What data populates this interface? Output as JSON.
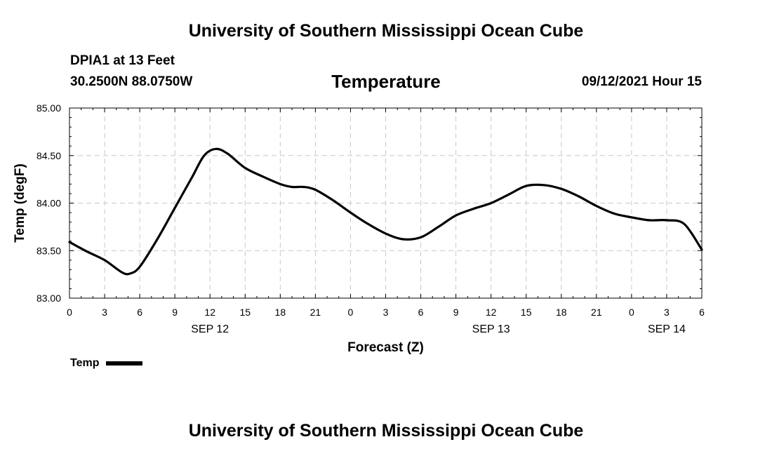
{
  "header": {
    "title": "University of Southern Mississippi Ocean Cube",
    "station": "DPIA1 at 13 Feet",
    "coordinates": "30.2500N  88.0750W",
    "chart_title": "Temperature",
    "datetime": "09/12/2021 Hour 15"
  },
  "footer": {
    "title": "University of Southern Mississippi Ocean Cube"
  },
  "legend": {
    "label": "Temp"
  },
  "chart_data": {
    "type": "line",
    "title": "Temperature",
    "xlabel": "Forecast (Z)",
    "ylabel": "Temp (degF)",
    "xlim": [
      0,
      54
    ],
    "ylim": [
      83.0,
      85.0
    ],
    "yticks": [
      83.0,
      83.5,
      84.0,
      84.5,
      85.0
    ],
    "ytick_labels": [
      "83.00",
      "83.50",
      "84.00",
      "84.50",
      "85.00"
    ],
    "xticks": [
      0,
      3,
      6,
      9,
      12,
      15,
      18,
      21,
      24,
      27,
      30,
      33,
      36,
      39,
      42,
      45,
      48,
      51,
      54
    ],
    "xtick_labels": [
      "0",
      "3",
      "6",
      "9",
      "12",
      "15",
      "18",
      "21",
      "0",
      "3",
      "6",
      "9",
      "12",
      "15",
      "18",
      "21",
      "0",
      "3",
      "6"
    ],
    "date_labels": [
      {
        "label": "SEP 12",
        "x": 12
      },
      {
        "label": "SEP 13",
        "x": 36
      },
      {
        "label": "SEP 14",
        "x": 51
      }
    ],
    "grid": true,
    "legend_position": "bottom-left",
    "series_color": "#000000",
    "series": [
      {
        "name": "Temp",
        "x": [
          0,
          1.5,
          3,
          4.5,
          5.2,
          6,
          7.5,
          9,
          10.5,
          11.5,
          12.5,
          13.5,
          15,
          16.5,
          18,
          19,
          20,
          21,
          22.5,
          24,
          25.5,
          27,
          28.5,
          30,
          31.5,
          33,
          34.5,
          36,
          37.5,
          39,
          40.5,
          42,
          43.5,
          45,
          46.5,
          48,
          49.5,
          51,
          52.5,
          54
        ],
        "y": [
          83.59,
          83.49,
          83.4,
          83.27,
          83.26,
          83.33,
          83.62,
          83.95,
          84.28,
          84.5,
          84.57,
          84.52,
          84.37,
          84.28,
          84.2,
          84.17,
          84.17,
          84.14,
          84.03,
          83.9,
          83.78,
          83.68,
          83.62,
          83.64,
          83.75,
          83.87,
          83.94,
          84.0,
          84.09,
          84.18,
          84.19,
          84.15,
          84.07,
          83.97,
          83.89,
          83.85,
          83.82,
          83.82,
          83.78,
          83.51
        ]
      }
    ]
  }
}
